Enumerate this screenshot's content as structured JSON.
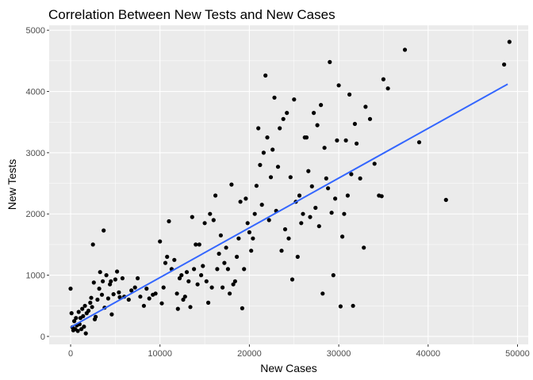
{
  "chart_data": {
    "type": "scatter",
    "title": "Correlation Between New Tests and New Cases",
    "xlabel": "New Cases",
    "ylabel": "New Tests",
    "xlim": [
      -2400,
      51200
    ],
    "ylim": [
      -130,
      5080
    ],
    "xticks": [
      0,
      10000,
      20000,
      30000,
      40000,
      50000
    ],
    "yticks": [
      0,
      1000,
      2000,
      3000,
      4000,
      5000
    ],
    "grid": true,
    "legend": "none",
    "colors": {
      "panel": "#ebebeb",
      "grid": "#ffffff",
      "points": "#000000",
      "trend": "#3366ff"
    },
    "trendline": {
      "x": [
        0,
        48900
      ],
      "y": [
        150,
        4120
      ]
    },
    "points": [
      [
        0,
        780
      ],
      [
        100,
        380
      ],
      [
        200,
        150
      ],
      [
        300,
        100
      ],
      [
        400,
        250
      ],
      [
        500,
        120
      ],
      [
        600,
        300
      ],
      [
        700,
        180
      ],
      [
        800,
        90
      ],
      [
        900,
        400
      ],
      [
        1000,
        200
      ],
      [
        1100,
        300
      ],
      [
        1200,
        120
      ],
      [
        1300,
        450
      ],
      [
        1400,
        330
      ],
      [
        1500,
        160
      ],
      [
        1600,
        500
      ],
      [
        1700,
        50
      ],
      [
        1800,
        380
      ],
      [
        2000,
        420
      ],
      [
        2200,
        550
      ],
      [
        2300,
        630
      ],
      [
        2400,
        480
      ],
      [
        2500,
        1500
      ],
      [
        2600,
        880
      ],
      [
        2700,
        280
      ],
      [
        2800,
        320
      ],
      [
        3000,
        600
      ],
      [
        3200,
        780
      ],
      [
        3300,
        1050
      ],
      [
        3500,
        680
      ],
      [
        3600,
        900
      ],
      [
        3700,
        1730
      ],
      [
        3800,
        470
      ],
      [
        4000,
        1000
      ],
      [
        4200,
        620
      ],
      [
        4400,
        850
      ],
      [
        4500,
        900
      ],
      [
        4600,
        360
      ],
      [
        4800,
        690
      ],
      [
        5000,
        930
      ],
      [
        5200,
        1060
      ],
      [
        5400,
        720
      ],
      [
        5500,
        640
      ],
      [
        5800,
        950
      ],
      [
        6000,
        650
      ],
      [
        6500,
        600
      ],
      [
        6800,
        750
      ],
      [
        7200,
        800
      ],
      [
        7500,
        950
      ],
      [
        7800,
        650
      ],
      [
        8200,
        500
      ],
      [
        8500,
        780
      ],
      [
        8800,
        620
      ],
      [
        9200,
        680
      ],
      [
        9500,
        700
      ],
      [
        10000,
        1550
      ],
      [
        10200,
        540
      ],
      [
        10400,
        800
      ],
      [
        10600,
        1200
      ],
      [
        10800,
        1300
      ],
      [
        11000,
        1880
      ],
      [
        11300,
        1100
      ],
      [
        11600,
        1250
      ],
      [
        11900,
        700
      ],
      [
        12000,
        450
      ],
      [
        12200,
        950
      ],
      [
        12400,
        1000
      ],
      [
        12600,
        600
      ],
      [
        12800,
        650
      ],
      [
        13000,
        1050
      ],
      [
        13200,
        900
      ],
      [
        13400,
        480
      ],
      [
        13600,
        1950
      ],
      [
        13800,
        1100
      ],
      [
        14000,
        1500
      ],
      [
        14200,
        850
      ],
      [
        14400,
        1500
      ],
      [
        14600,
        1000
      ],
      [
        14800,
        1150
      ],
      [
        15000,
        1850
      ],
      [
        15200,
        900
      ],
      [
        15400,
        550
      ],
      [
        15600,
        2000
      ],
      [
        15800,
        800
      ],
      [
        16000,
        1900
      ],
      [
        16200,
        2300
      ],
      [
        16400,
        1100
      ],
      [
        16600,
        1350
      ],
      [
        16800,
        1650
      ],
      [
        17000,
        800
      ],
      [
        17200,
        1200
      ],
      [
        17400,
        1450
      ],
      [
        17600,
        1100
      ],
      [
        17800,
        700
      ],
      [
        18000,
        2480
      ],
      [
        18200,
        850
      ],
      [
        18400,
        900
      ],
      [
        18600,
        1300
      ],
      [
        18800,
        1600
      ],
      [
        19000,
        2200
      ],
      [
        19200,
        460
      ],
      [
        19400,
        1100
      ],
      [
        19600,
        2250
      ],
      [
        19800,
        1850
      ],
      [
        20000,
        1700
      ],
      [
        20200,
        1400
      ],
      [
        20400,
        1600
      ],
      [
        20600,
        2000
      ],
      [
        20800,
        2460
      ],
      [
        21000,
        3400
      ],
      [
        21200,
        2800
      ],
      [
        21400,
        2150
      ],
      [
        21600,
        3000
      ],
      [
        21800,
        4260
      ],
      [
        22000,
        3250
      ],
      [
        22200,
        1900
      ],
      [
        22400,
        2600
      ],
      [
        22600,
        3050
      ],
      [
        22800,
        3900
      ],
      [
        23000,
        2050
      ],
      [
        23200,
        2770
      ],
      [
        23400,
        3400
      ],
      [
        23600,
        1400
      ],
      [
        23800,
        3550
      ],
      [
        24000,
        1750
      ],
      [
        24200,
        3650
      ],
      [
        24400,
        1600
      ],
      [
        24600,
        2600
      ],
      [
        24800,
        930
      ],
      [
        25000,
        3870
      ],
      [
        25200,
        2200
      ],
      [
        25400,
        1300
      ],
      [
        25600,
        2300
      ],
      [
        25800,
        1850
      ],
      [
        26000,
        2000
      ],
      [
        26200,
        3250
      ],
      [
        26400,
        3250
      ],
      [
        26600,
        2700
      ],
      [
        26800,
        1950
      ],
      [
        27000,
        2450
      ],
      [
        27200,
        3650
      ],
      [
        27400,
        2100
      ],
      [
        27600,
        3450
      ],
      [
        27800,
        1800
      ],
      [
        28000,
        3780
      ],
      [
        28200,
        700
      ],
      [
        28400,
        3080
      ],
      [
        28600,
        2580
      ],
      [
        28800,
        2420
      ],
      [
        29000,
        4480
      ],
      [
        29200,
        2020
      ],
      [
        29400,
        1000
      ],
      [
        29600,
        2250
      ],
      [
        29800,
        3200
      ],
      [
        30000,
        4100
      ],
      [
        30200,
        490
      ],
      [
        30400,
        1630
      ],
      [
        30600,
        2000
      ],
      [
        30800,
        3200
      ],
      [
        31000,
        2300
      ],
      [
        31200,
        3950
      ],
      [
        31400,
        2650
      ],
      [
        31600,
        500
      ],
      [
        31800,
        3470
      ],
      [
        32000,
        3150
      ],
      [
        32400,
        2580
      ],
      [
        32800,
        1450
      ],
      [
        33000,
        3750
      ],
      [
        33500,
        3550
      ],
      [
        34000,
        2820
      ],
      [
        34500,
        2300
      ],
      [
        34800,
        2290
      ],
      [
        35000,
        4200
      ],
      [
        35500,
        4050
      ],
      [
        37400,
        4680
      ],
      [
        39000,
        3170
      ],
      [
        42000,
        2230
      ],
      [
        48500,
        4440
      ],
      [
        49100,
        4810
      ]
    ]
  }
}
